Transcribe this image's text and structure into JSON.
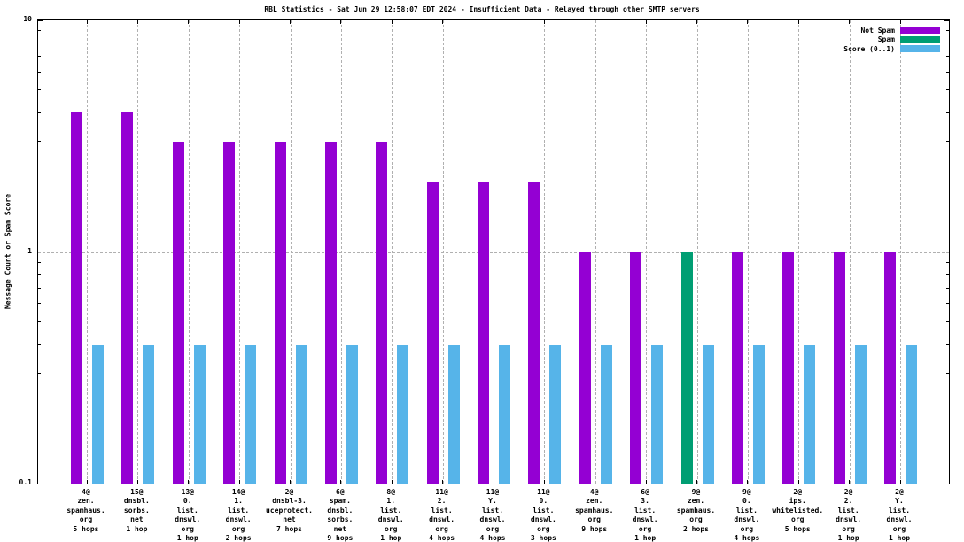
{
  "title": "RBL Statistics - Sat Jun 29 12:58:07 EDT 2024 - Insufficient Data - Relayed through other SMTP servers",
  "y_axis_label": "Message Count or Spam Score",
  "legend": [
    {
      "label": "Not Spam",
      "color": "#9400d3"
    },
    {
      "label": "Spam",
      "color": "#009e73"
    },
    {
      "label": "Score (0..1)",
      "color": "#56b4e9"
    }
  ],
  "chart_data": {
    "type": "bar",
    "title": "RBL Statistics - Sat Jun 29 12:58:07 EDT 2024 - Insufficient Data - Relayed through other SMTP servers",
    "ylabel": "Message Count or Spam Score",
    "yscale": "log",
    "ylim": [
      0.1,
      10
    ],
    "yticks": [
      {
        "label": "10",
        "value": 10
      },
      {
        "label": "1",
        "value": 1
      },
      {
        "label": "0.1",
        "value": 0.1
      }
    ],
    "grid": true,
    "legend_position": "top-right",
    "groups": [
      {
        "label_lines": [
          "4@",
          "zen.",
          "spamhaus.",
          "org",
          "5 hops"
        ],
        "count": 4,
        "count_series": "Not Spam",
        "score": 0.4
      },
      {
        "label_lines": [
          "15@",
          "dnsbl.",
          "sorbs.",
          "net",
          "1 hop"
        ],
        "count": 4,
        "count_series": "Not Spam",
        "score": 0.4
      },
      {
        "label_lines": [
          "13@",
          "0.",
          "list.",
          "dnswl.",
          "org",
          "1 hop"
        ],
        "count": 3,
        "count_series": "Not Spam",
        "score": 0.4
      },
      {
        "label_lines": [
          "14@",
          "1.",
          "list.",
          "dnswl.",
          "org",
          "2 hops"
        ],
        "count": 3,
        "count_series": "Not Spam",
        "score": 0.4
      },
      {
        "label_lines": [
          "2@",
          "dnsbl-3.",
          "uceprotect.",
          "net",
          "7 hops"
        ],
        "count": 3,
        "count_series": "Not Spam",
        "score": 0.4
      },
      {
        "label_lines": [
          "6@",
          "spam.",
          "dnsbl.",
          "sorbs.",
          "net",
          "9 hops"
        ],
        "count": 3,
        "count_series": "Not Spam",
        "score": 0.4
      },
      {
        "label_lines": [
          "8@",
          "1.",
          "list.",
          "dnswl.",
          "org",
          "1 hop"
        ],
        "count": 3,
        "count_series": "Not Spam",
        "score": 0.4
      },
      {
        "label_lines": [
          "11@",
          "2.",
          "list.",
          "dnswl.",
          "org",
          "4 hops"
        ],
        "count": 2,
        "count_series": "Not Spam",
        "score": 0.4
      },
      {
        "label_lines": [
          "11@",
          "Y.",
          "list.",
          "dnswl.",
          "org",
          "4 hops"
        ],
        "count": 2,
        "count_series": "Not Spam",
        "score": 0.4
      },
      {
        "label_lines": [
          "11@",
          "0.",
          "list.",
          "dnswl.",
          "org",
          "3 hops"
        ],
        "count": 2,
        "count_series": "Not Spam",
        "score": 0.4
      },
      {
        "label_lines": [
          "4@",
          "zen.",
          "spamhaus.",
          "org",
          "9 hops"
        ],
        "count": 1,
        "count_series": "Not Spam",
        "score": 0.4
      },
      {
        "label_lines": [
          "6@",
          "3.",
          "list.",
          "dnswl.",
          "org",
          "1 hop"
        ],
        "count": 1,
        "count_series": "Not Spam",
        "score": 0.4
      },
      {
        "label_lines": [
          "9@",
          "zen.",
          "spamhaus.",
          "org",
          "2 hops"
        ],
        "count": 1,
        "count_series": "Spam",
        "score": 0.4
      },
      {
        "label_lines": [
          "9@",
          "0.",
          "list.",
          "dnswl.",
          "org",
          "4 hops"
        ],
        "count": 1,
        "count_series": "Not Spam",
        "score": 0.4
      },
      {
        "label_lines": [
          "2@",
          "ips.",
          "whitelisted.",
          "org",
          "5 hops"
        ],
        "count": 1,
        "count_series": "Not Spam",
        "score": 0.4
      },
      {
        "label_lines": [
          "2@",
          "2.",
          "list.",
          "dnswl.",
          "org",
          "1 hop"
        ],
        "count": 1,
        "count_series": "Not Spam",
        "score": 0.4
      },
      {
        "label_lines": [
          "2@",
          "Y.",
          "list.",
          "dnswl.",
          "org",
          "1 hop"
        ],
        "count": 1,
        "count_series": "Not Spam",
        "score": 0.4
      }
    ],
    "series": [
      {
        "name": "Not Spam",
        "color": "#9400d3",
        "values": [
          4,
          4,
          3,
          3,
          3,
          3,
          3,
          2,
          2,
          2,
          1,
          1,
          null,
          1,
          1,
          1,
          1
        ]
      },
      {
        "name": "Spam",
        "color": "#009e73",
        "values": [
          null,
          null,
          null,
          null,
          null,
          null,
          null,
          null,
          null,
          null,
          null,
          null,
          1,
          null,
          null,
          null,
          null
        ]
      },
      {
        "name": "Score (0..1)",
        "color": "#56b4e9",
        "values": [
          0.4,
          0.4,
          0.4,
          0.4,
          0.4,
          0.4,
          0.4,
          0.4,
          0.4,
          0.4,
          0.4,
          0.4,
          0.4,
          0.4,
          0.4,
          0.4,
          0.4
        ]
      }
    ]
  }
}
